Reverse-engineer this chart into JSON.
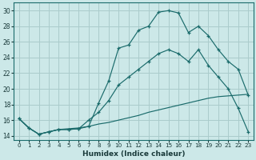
{
  "xlabel": "Humidex (Indice chaleur)",
  "background_color": "#cce8e8",
  "grid_color": "#aacccc",
  "line_color": "#1a6b6b",
  "xlim": [
    -0.5,
    23.5
  ],
  "ylim": [
    13.5,
    31
  ],
  "xticks": [
    0,
    1,
    2,
    3,
    4,
    5,
    6,
    7,
    8,
    9,
    10,
    11,
    12,
    13,
    14,
    15,
    16,
    17,
    18,
    19,
    20,
    21,
    22,
    23
  ],
  "yticks": [
    14,
    16,
    18,
    20,
    22,
    24,
    26,
    28,
    30
  ],
  "line1_x": [
    0,
    1,
    2,
    3,
    4,
    5,
    6,
    7,
    8,
    9,
    10,
    11,
    12,
    13,
    14,
    15,
    16,
    17,
    18,
    19,
    20,
    21,
    22,
    23
  ],
  "line1_y": [
    16.2,
    15.0,
    14.2,
    14.5,
    14.8,
    14.8,
    14.9,
    15.2,
    18.2,
    21.0,
    25.2,
    25.6,
    27.5,
    28.0,
    29.8,
    30.0,
    29.7,
    27.2,
    28.0,
    26.8,
    25.0,
    23.5,
    22.5,
    19.2
  ],
  "line2_x": [
    0,
    1,
    2,
    3,
    4,
    5,
    6,
    7,
    8,
    9,
    10,
    11,
    12,
    13,
    14,
    15,
    16,
    17,
    18,
    19,
    20,
    21,
    22,
    23
  ],
  "line2_y": [
    16.2,
    15.0,
    14.2,
    14.5,
    14.8,
    14.8,
    14.9,
    16.0,
    17.0,
    18.5,
    20.5,
    21.5,
    22.5,
    23.5,
    24.5,
    25.0,
    24.5,
    23.5,
    25.0,
    23.0,
    21.5,
    20.0,
    17.5,
    14.5
  ],
  "line3_x": [
    0,
    1,
    2,
    3,
    4,
    5,
    6,
    7,
    8,
    9,
    10,
    11,
    12,
    13,
    14,
    15,
    16,
    17,
    18,
    19,
    20,
    21,
    22,
    23
  ],
  "line3_y": [
    16.2,
    15.0,
    14.2,
    14.5,
    14.8,
    14.9,
    15.0,
    15.2,
    15.5,
    15.7,
    16.0,
    16.3,
    16.6,
    17.0,
    17.3,
    17.6,
    17.9,
    18.2,
    18.5,
    18.8,
    19.0,
    19.1,
    19.2,
    19.3
  ]
}
